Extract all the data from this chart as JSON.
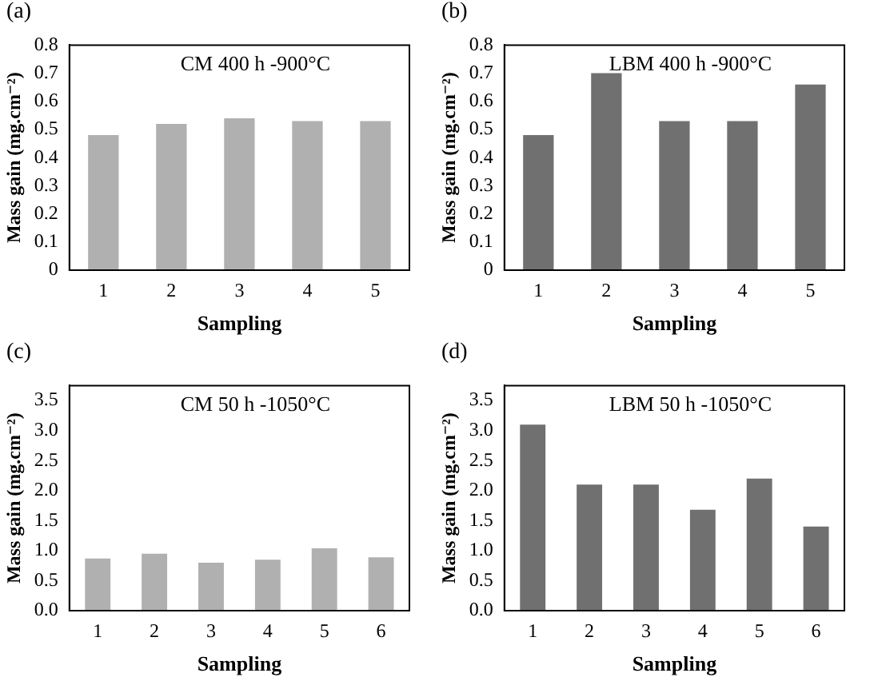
{
  "chart_data": [
    {
      "type": "bar",
      "title": "(a)",
      "annotations": [
        "CM 400 h -900°C"
      ],
      "xlabel": "Sampling",
      "ylabel": "Mass gain (mg.cm⁻²)",
      "categories": [
        "1",
        "2",
        "3",
        "4",
        "5"
      ],
      "values": [
        0.48,
        0.52,
        0.54,
        0.53,
        0.53
      ],
      "color": "#b0b0b0",
      "ylim": [
        0,
        0.8
      ],
      "yticks": [
        0,
        0.1,
        0.2,
        0.3,
        0.4,
        0.5,
        0.6,
        0.7,
        0.8
      ],
      "grid": false,
      "legend": false
    },
    {
      "type": "bar",
      "title": "(b)",
      "annotations": [
        "LBM 400 h -900°C"
      ],
      "xlabel": "Sampling",
      "ylabel": "Mass gain (mg.cm⁻²)",
      "categories": [
        "1",
        "2",
        "3",
        "4",
        "5"
      ],
      "values": [
        0.48,
        0.7,
        0.53,
        0.53,
        0.66
      ],
      "color": "#707070",
      "ylim": [
        0,
        0.8
      ],
      "yticks": [
        0,
        0.1,
        0.2,
        0.3,
        0.4,
        0.5,
        0.6,
        0.7,
        0.8
      ],
      "grid": false,
      "legend": false
    },
    {
      "type": "bar",
      "title": "(c)",
      "annotations": [
        "CM 50 h -1050°C"
      ],
      "xlabel": "Sampling",
      "ylabel": "Mass gain (mg.cm⁻²)",
      "categories": [
        "1",
        "2",
        "3",
        "4",
        "5",
        "6"
      ],
      "values": [
        0.87,
        0.95,
        0.8,
        0.85,
        1.04,
        0.89
      ],
      "color": "#b0b0b0",
      "ylim": [
        0,
        3.75
      ],
      "yticks": [
        {
          "value": 0,
          "label": "0.0"
        },
        0.5,
        {
          "value": 1,
          "label": "1.0"
        },
        1.5,
        {
          "value": 2,
          "label": "2.0"
        },
        2.5,
        {
          "value": 3,
          "label": "3.0"
        },
        3.5
      ],
      "grid": false,
      "legend": false
    },
    {
      "type": "bar",
      "title": "(d)",
      "annotations": [
        "LBM 50 h -1050°C"
      ],
      "xlabel": "Sampling",
      "ylabel": "Mass gain (mg.cm⁻²)",
      "categories": [
        "1",
        "2",
        "3",
        "4",
        "5",
        "6"
      ],
      "values": [
        3.1,
        2.1,
        2.1,
        1.68,
        2.2,
        1.4
      ],
      "color": "#707070",
      "ylim": [
        0,
        3.75
      ],
      "yticks": [
        {
          "value": 0,
          "label": "0.0"
        },
        0.5,
        {
          "value": 1,
          "label": "1.0"
        },
        1.5,
        {
          "value": 2,
          "label": "2.0"
        },
        2.5,
        {
          "value": 3,
          "label": "3.0"
        },
        3.5
      ],
      "grid": false,
      "legend": false
    }
  ]
}
